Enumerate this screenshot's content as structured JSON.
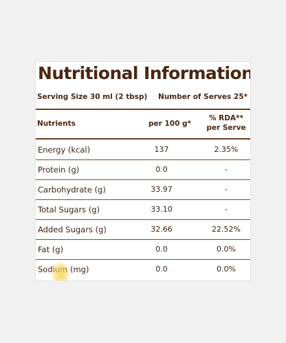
{
  "label": {
    "title": "Nutritional Information",
    "serving_size": "Serving Size 30 ml (2 tbsp)",
    "number_of_serves": "Number of Serves 25*",
    "headers": {
      "nutrients": "Nutrients",
      "per100": "per 100 g*",
      "rda_line1": "% RDA**",
      "rda_line2": "per Serve"
    },
    "rows": [
      {
        "name": "Energy (kcal)",
        "per100": "137",
        "rda": "2.35%"
      },
      {
        "name": "Protein (g)",
        "per100": "0.0",
        "rda": "-"
      },
      {
        "name": "Carbohydrate (g)",
        "per100": "33.97",
        "rda": "-"
      },
      {
        "name": "Total Sugars (g)",
        "per100": "33.10",
        "rda": "-"
      },
      {
        "name": "Added Sugars (g)",
        "per100": "32.66",
        "rda": "22.52%"
      },
      {
        "name": "Fat (g)",
        "per100": "0.0",
        "rda": "0.0%"
      },
      {
        "name": "Sodium (mg)",
        "per100": "0.0",
        "rda": "0.0%"
      }
    ]
  },
  "colors": {
    "text": "#3a1f10",
    "rules": "#6a3e22",
    "background": "#f1f1f1",
    "label": "#ffffff"
  }
}
